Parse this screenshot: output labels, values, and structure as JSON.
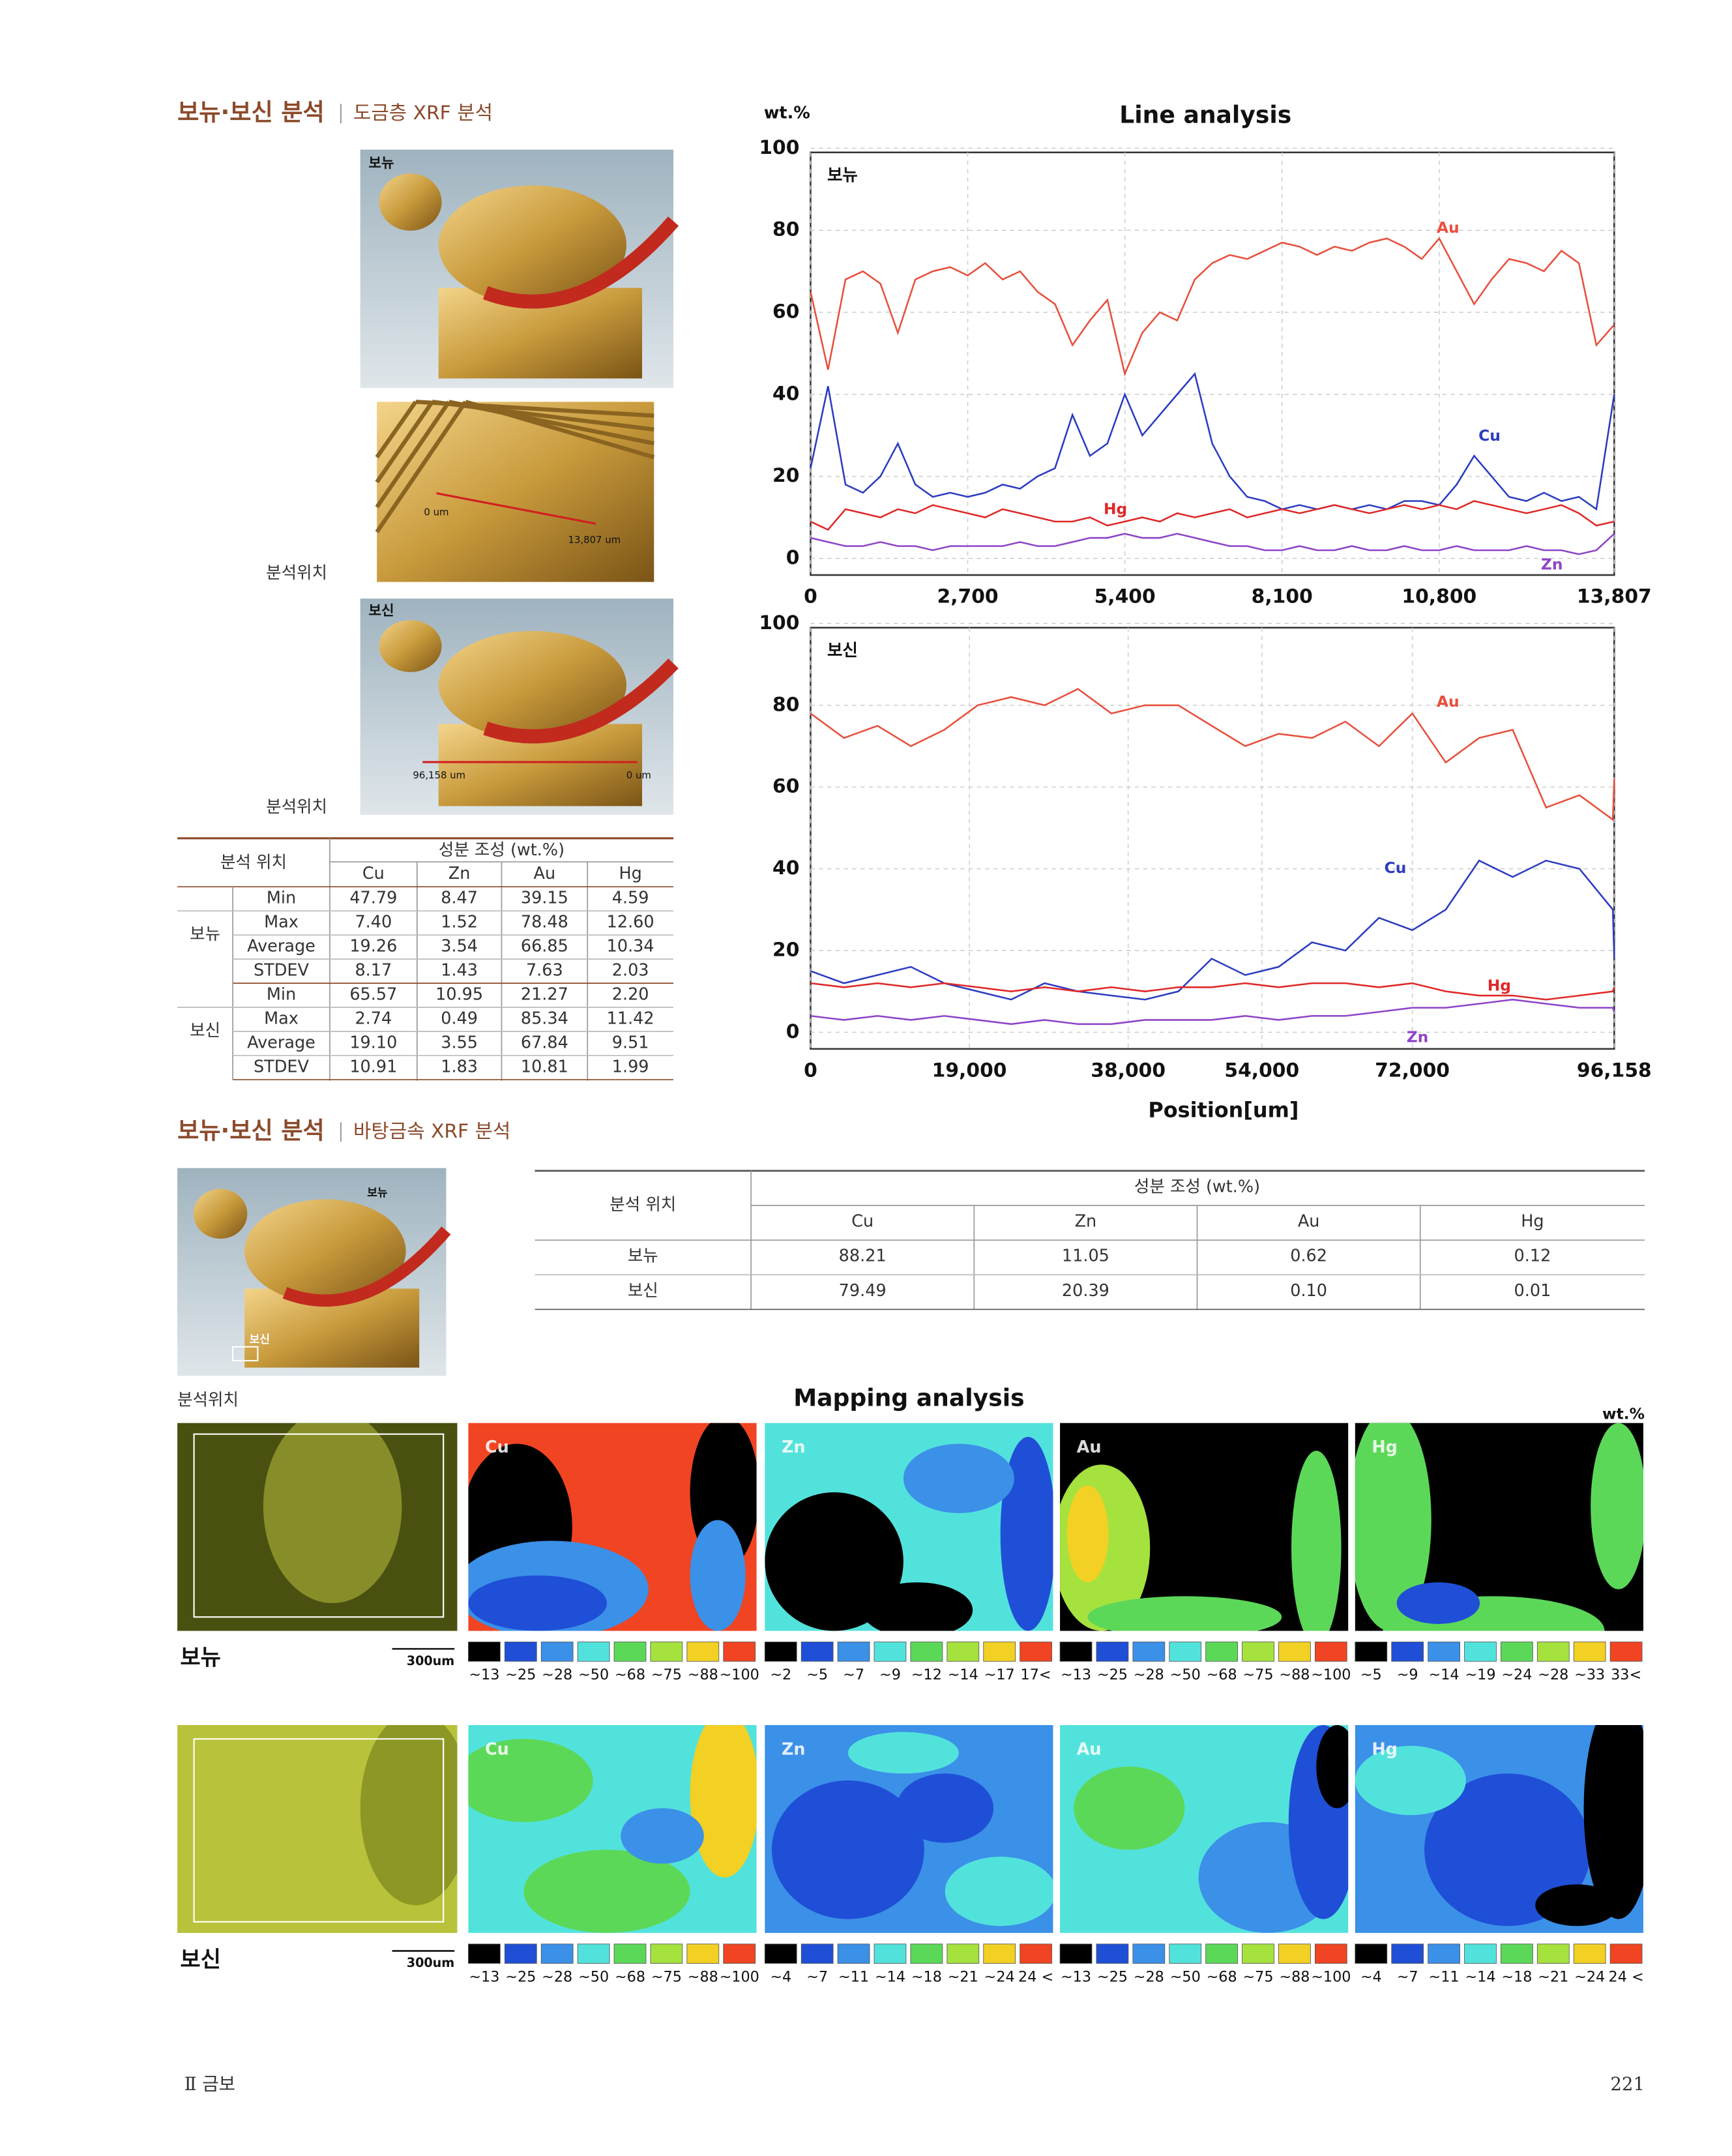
{
  "section1": {
    "title": "보뉴·보신 분석",
    "subtitle": "도금층 XRF 분석"
  },
  "photos": {
    "label_1": "보뉴",
    "label_2": "보신",
    "zero": "0 um",
    "end_1": "13,807 um",
    "end_2": "96,158 um",
    "location_label": "분석위치"
  },
  "table1": {
    "header": [
      "분석 위치",
      "성분 조성 (wt.%)"
    ],
    "columns": [
      "Cu",
      "Zn",
      "Au",
      "Hg"
    ],
    "groups": [
      {
        "name": "보뉴",
        "rows": [
          {
            "stat": "Min",
            "values": [
              "47.79",
              "8.47",
              "39.15",
              "4.59"
            ]
          },
          {
            "stat": "Max",
            "values": [
              "7.40",
              "1.52",
              "78.48",
              "12.60"
            ]
          },
          {
            "stat": "Average",
            "values": [
              "19.26",
              "3.54",
              "66.85",
              "10.34"
            ]
          },
          {
            "stat": "STDEV",
            "values": [
              "8.17",
              "1.43",
              "7.63",
              "2.03"
            ]
          }
        ]
      },
      {
        "name": "보신",
        "rows": [
          {
            "stat": "Min",
            "values": [
              "65.57",
              "10.95",
              "21.27",
              "2.20"
            ]
          },
          {
            "stat": "Max",
            "values": [
              "2.74",
              "0.49",
              "85.34",
              "11.42"
            ]
          },
          {
            "stat": "Average",
            "values": [
              "19.10",
              "3.55",
              "67.84",
              "9.51"
            ]
          },
          {
            "stat": "STDEV",
            "values": [
              "10.91",
              "1.83",
              "10.81",
              "1.99"
            ]
          }
        ]
      }
    ]
  },
  "chart_data": [
    {
      "type": "line",
      "title": "Line analysis",
      "ylabel": "wt.%",
      "panel_label": "보뉴",
      "grid": true,
      "x": [
        0,
        300,
        600,
        900,
        1200,
        1500,
        1800,
        2100,
        2400,
        2700,
        3000,
        3300,
        3600,
        3900,
        4200,
        4500,
        4800,
        5100,
        5400,
        5700,
        6000,
        6300,
        6600,
        6900,
        7200,
        7500,
        7800,
        8100,
        8400,
        8700,
        9000,
        9300,
        9600,
        9900,
        10200,
        10500,
        10800,
        11100,
        11400,
        11700,
        12000,
        12300,
        12600,
        12900,
        13200,
        13500,
        13807
      ],
      "xlim": [
        0,
        13807
      ],
      "xticks": [
        0,
        {
          "value": 2700,
          "label": "2,700"
        },
        {
          "value": 5400,
          "label": "5,400"
        },
        {
          "value": 8100,
          "label": "8,100"
        },
        {
          "value": 10800,
          "label": "10,800"
        },
        {
          "value": 13807,
          "label": "13,807"
        }
      ],
      "ylim": [
        0,
        100
      ],
      "yticks": [
        0,
        20,
        40,
        60,
        80,
        100
      ],
      "series": [
        {
          "name": "Au",
          "color": "#e8503e",
          "values": [
            65,
            46,
            68,
            70,
            67,
            55,
            68,
            70,
            71,
            69,
            72,
            68,
            70,
            65,
            62,
            52,
            58,
            63,
            45,
            55,
            60,
            58,
            68,
            72,
            74,
            73,
            75,
            77,
            76,
            74,
            76,
            75,
            77,
            78,
            76,
            73,
            78,
            70,
            62,
            68,
            73,
            72,
            70,
            75,
            72,
            52,
            57
          ]
        },
        {
          "name": "Cu",
          "color": "#2c3cc0",
          "values": [
            22,
            42,
            18,
            16,
            20,
            28,
            18,
            15,
            16,
            15,
            16,
            18,
            17,
            20,
            22,
            35,
            25,
            28,
            40,
            30,
            35,
            40,
            45,
            28,
            20,
            15,
            14,
            12,
            13,
            12,
            13,
            12,
            13,
            12,
            14,
            14,
            13,
            18,
            25,
            20,
            15,
            14,
            16,
            14,
            15,
            12,
            40
          ]
        },
        {
          "name": "Hg",
          "color": "#e02828",
          "values": [
            9,
            7,
            12,
            11,
            10,
            12,
            11,
            13,
            12,
            11,
            10,
            12,
            11,
            10,
            9,
            9,
            10,
            8,
            9,
            10,
            9,
            11,
            10,
            11,
            12,
            10,
            11,
            12,
            11,
            12,
            13,
            12,
            11,
            12,
            13,
            12,
            13,
            12,
            14,
            13,
            12,
            11,
            12,
            13,
            11,
            8,
            9
          ]
        },
        {
          "name": "Zn",
          "color": "#8e44c8",
          "values": [
            5,
            4,
            3,
            3,
            4,
            3,
            3,
            2,
            3,
            3,
            3,
            3,
            4,
            3,
            3,
            4,
            5,
            5,
            6,
            5,
            5,
            6,
            5,
            4,
            3,
            3,
            2,
            2,
            3,
            2,
            2,
            3,
            2,
            2,
            3,
            2,
            2,
            3,
            2,
            2,
            2,
            3,
            2,
            2,
            1,
            2,
            6
          ]
        }
      ]
    },
    {
      "type": "line",
      "xlabel": "Position[um]",
      "panel_label": "보신",
      "grid": true,
      "x": [
        0,
        4000,
        8000,
        12000,
        16000,
        20000,
        24000,
        28000,
        32000,
        36000,
        40000,
        44000,
        48000,
        52000,
        56000,
        60000,
        64000,
        68000,
        72000,
        76000,
        80000,
        84000,
        88000,
        92000,
        96000,
        96158
      ],
      "xlim": [
        0,
        96158
      ],
      "xticks": [
        0,
        {
          "value": 19000,
          "label": "19,000"
        },
        {
          "value": 38000,
          "label": "38,000"
        },
        {
          "value": 54000,
          "label": "54,000"
        },
        {
          "value": 72000,
          "label": "72,000"
        },
        {
          "value": 96158,
          "label": "96,158"
        }
      ],
      "ylim": [
        0,
        100
      ],
      "yticks": [
        0,
        20,
        40,
        60,
        80,
        100
      ],
      "series": [
        {
          "name": "Au",
          "color": "#e8503e",
          "values": [
            78,
            72,
            75,
            70,
            74,
            80,
            82,
            80,
            84,
            78,
            80,
            80,
            75,
            70,
            73,
            72,
            76,
            70,
            78,
            66,
            72,
            74,
            55,
            58,
            52,
            62
          ]
        },
        {
          "name": "Cu",
          "color": "#2c3cc0",
          "values": [
            15,
            12,
            14,
            16,
            12,
            10,
            8,
            12,
            10,
            9,
            8,
            10,
            18,
            14,
            16,
            22,
            20,
            28,
            25,
            30,
            42,
            38,
            42,
            40,
            30,
            18
          ]
        },
        {
          "name": "Hg",
          "color": "#e02828",
          "values": [
            12,
            11,
            12,
            11,
            12,
            11,
            10,
            11,
            10,
            11,
            10,
            11,
            11,
            12,
            11,
            12,
            12,
            11,
            12,
            10,
            9,
            9,
            8,
            9,
            10,
            11
          ]
        },
        {
          "name": "Zn",
          "color": "#8e44c8",
          "values": [
            4,
            3,
            4,
            3,
            4,
            3,
            2,
            3,
            2,
            2,
            3,
            3,
            3,
            4,
            3,
            4,
            4,
            5,
            6,
            6,
            7,
            8,
            7,
            6,
            6,
            5
          ]
        }
      ]
    }
  ],
  "section2": {
    "title": "보뉴·보신 분석",
    "subtitle": "바탕금속 XRF 분석"
  },
  "photo2": {
    "label_1": "보뉴",
    "label_2": "보신",
    "location_label": "분석위치"
  },
  "table2": {
    "header": [
      "분석 위치",
      "성분 조성 (wt.%)"
    ],
    "columns": [
      "Cu",
      "Zn",
      "Au",
      "Hg"
    ],
    "rows": [
      {
        "name": "보뉴",
        "values": [
          "88.21",
          "11.05",
          "0.62",
          "0.12"
        ]
      },
      {
        "name": "보신",
        "values": [
          "79.49",
          "20.39",
          "0.10",
          "0.01"
        ]
      }
    ]
  },
  "mapping": {
    "title": "Mapping analysis",
    "unit": "wt.%",
    "scale_bar": "300um",
    "palette": [
      "#000000",
      "#1f4fd6",
      "#3b90e8",
      "#52e2dc",
      "#5cd858",
      "#a6e23e",
      "#f2d024",
      "#f04422"
    ],
    "rows": [
      {
        "name": "보뉴",
        "panels": [
          {
            "element": "Cu",
            "legend": [
              "~13",
              "~25",
              "~28",
              "~50",
              "~68",
              "~75",
              "~88",
              "~100"
            ]
          },
          {
            "element": "Zn",
            "legend": [
              "~2",
              "~5",
              "~7",
              "~9",
              "~12",
              "~14",
              "~17",
              "17<"
            ]
          },
          {
            "element": "Au",
            "legend": [
              "~13",
              "~25",
              "~28",
              "~50",
              "~68",
              "~75",
              "~88",
              "~100"
            ]
          },
          {
            "element": "Hg",
            "legend": [
              "~5",
              "~9",
              "~14",
              "~19",
              "~24",
              "~28",
              "~33",
              "33<"
            ]
          }
        ]
      },
      {
        "name": "보신",
        "panels": [
          {
            "element": "Cu",
            "legend": [
              "~13",
              "~25",
              "~28",
              "~50",
              "~68",
              "~75",
              "~88",
              "~100"
            ]
          },
          {
            "element": "Zn",
            "legend": [
              "~4",
              "~7",
              "~11",
              "~14",
              "~18",
              "~21",
              "~24",
              "24 <"
            ]
          },
          {
            "element": "Au",
            "legend": [
              "~13",
              "~25",
              "~28",
              "~50",
              "~68",
              "~75",
              "~88",
              "~100"
            ]
          },
          {
            "element": "Hg",
            "legend": [
              "~4",
              "~7",
              "~11",
              "~14",
              "~18",
              "~21",
              "~24",
              "24 <"
            ]
          }
        ]
      }
    ]
  },
  "footer": {
    "chapter": "Ⅱ 금보",
    "page": "221"
  }
}
